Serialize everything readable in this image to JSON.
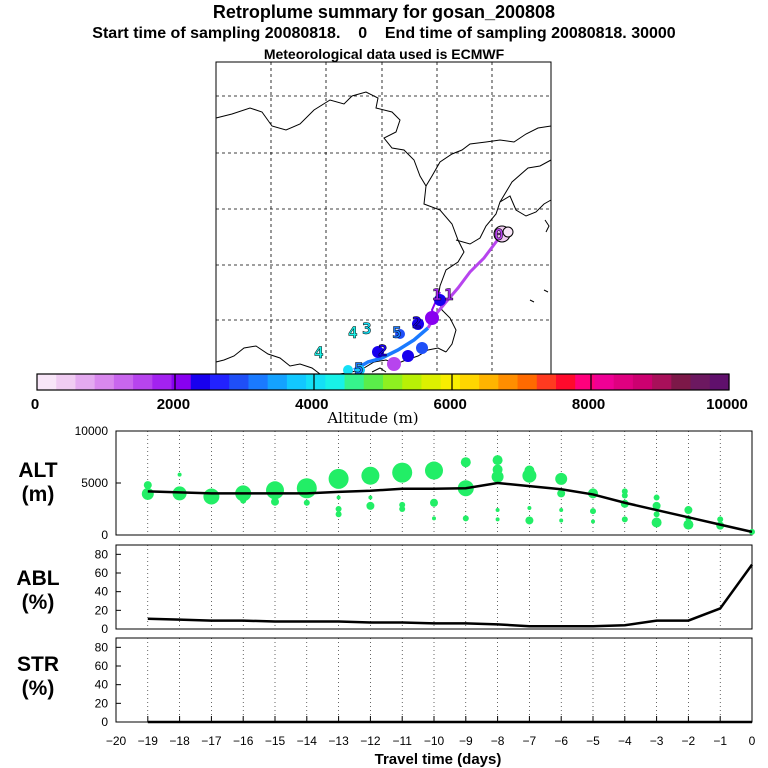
{
  "header": {
    "title": "Retroplume summary for gosan_200808",
    "start_label": "Start time of sampling 20080818.",
    "start_value": "0",
    "end_label": "End time of sampling 20080818.",
    "end_value": "30000",
    "met_line": "Meteorological data used is ECMWF"
  },
  "colorbar": {
    "label": "Altitude (m)",
    "ticks": [
      "0",
      "2000",
      "4000",
      "6000",
      "8000",
      "10000"
    ],
    "colors": [
      "#f8e6f8",
      "#f0ccf2",
      "#e4aaf0",
      "#d988ee",
      "#c966ee",
      "#b744ee",
      "#a322f0",
      "#8800f0",
      "#1800ee",
      "#2222ff",
      "#1f4ff7",
      "#1a7aff",
      "#14a2ff",
      "#12c8ff",
      "#14e0f6",
      "#18f2e8",
      "#36f48c",
      "#5aee4a",
      "#8ef020",
      "#b8f006",
      "#dcf000",
      "#f8ee00",
      "#ffd600",
      "#ffb400",
      "#ff8e00",
      "#ff6a00",
      "#ff3a20",
      "#ff0a2c",
      "#ff007c",
      "#ef0095",
      "#df0080",
      "#cc0070",
      "#a8105a",
      "#7c1848",
      "#6c1860",
      "#60106c"
    ]
  },
  "map": {
    "markers": [
      {
        "label": "0",
        "color": "#b744ee"
      },
      {
        "label": "1",
        "color": "#a322f0"
      },
      {
        "label": "2",
        "color": "#1800ee"
      },
      {
        "label": "3",
        "color": "#14e0f6"
      },
      {
        "label": "4",
        "color": "#18f2e8"
      },
      {
        "label": "5",
        "color": "#1a7aff"
      }
    ]
  },
  "chart_data": [
    {
      "type": "scatter",
      "panel": "ALT",
      "ylabel_line1": "ALT",
      "ylabel_line2": "(m)",
      "ylim": [
        0,
        10000
      ],
      "yticks": [
        "0",
        "5000",
        "10000"
      ],
      "mean_line": {
        "x": [
          -19,
          -18,
          -17,
          -16,
          -15,
          -14,
          -13,
          -12,
          -11,
          -10,
          -9,
          -8,
          -7,
          -6,
          -5,
          -4,
          -3,
          -2,
          -1,
          0
        ],
        "y": [
          4200,
          4100,
          4000,
          4000,
          4000,
          4000,
          4150,
          4250,
          4450,
          4450,
          4500,
          5000,
          4700,
          4400,
          3900,
          3100,
          2400,
          1700,
          1000,
          300
        ]
      },
      "clusters": [
        {
          "x": -19,
          "y": [
            3950,
            4800
          ],
          "size": [
            6,
            4
          ]
        },
        {
          "x": -18,
          "y": [
            4000,
            5800
          ],
          "size": [
            7,
            2
          ]
        },
        {
          "x": -17,
          "y": [
            3700
          ],
          "size": [
            8
          ]
        },
        {
          "x": -16,
          "y": [
            3300,
            4000
          ],
          "size": [
            3,
            8
          ]
        },
        {
          "x": -15,
          "y": [
            3200,
            4300
          ],
          "size": [
            4,
            9
          ]
        },
        {
          "x": -14,
          "y": [
            3100,
            4500
          ],
          "size": [
            3,
            10
          ]
        },
        {
          "x": -13,
          "y": [
            2000,
            2500,
            3600,
            5400
          ],
          "size": [
            3,
            3,
            2,
            10
          ]
        },
        {
          "x": -12,
          "y": [
            2800,
            3600,
            5700
          ],
          "size": [
            4,
            2,
            9
          ]
        },
        {
          "x": -11,
          "y": [
            2500,
            2900,
            6000
          ],
          "size": [
            3,
            3,
            10
          ]
        },
        {
          "x": -10,
          "y": [
            1600,
            3100,
            6200
          ],
          "size": [
            2,
            4,
            9
          ]
        },
        {
          "x": -9,
          "y": [
            1600,
            4500,
            7000
          ],
          "size": [
            3,
            8,
            5
          ]
        },
        {
          "x": -8,
          "y": [
            1500,
            2400,
            5600,
            6300,
            7200
          ],
          "size": [
            2,
            2,
            6,
            5,
            5
          ]
        },
        {
          "x": -7,
          "y": [
            1400,
            2600,
            5700,
            6200
          ],
          "size": [
            4,
            2,
            7,
            5
          ]
        },
        {
          "x": -6,
          "y": [
            1400,
            2400,
            4000,
            5400
          ],
          "size": [
            2,
            2,
            4,
            6
          ]
        },
        {
          "x": -5,
          "y": [
            1300,
            2300,
            4000
          ],
          "size": [
            2,
            3,
            5
          ]
        },
        {
          "x": -4,
          "y": [
            1500,
            3000,
            3800,
            4200
          ],
          "size": [
            3,
            4,
            3,
            3
          ]
        },
        {
          "x": -3,
          "y": [
            1200,
            2000,
            2800,
            3600
          ],
          "size": [
            5,
            3,
            4,
            3
          ]
        },
        {
          "x": -2,
          "y": [
            1000,
            1600,
            2400
          ],
          "size": [
            5,
            3,
            4
          ]
        },
        {
          "x": -1,
          "y": [
            900,
            1500
          ],
          "size": [
            4,
            3
          ]
        },
        {
          "x": 0,
          "y": [
            300
          ],
          "size": [
            3
          ]
        }
      ]
    },
    {
      "type": "line",
      "panel": "ABL",
      "ylabel_line1": "ABL",
      "ylabel_line2": "(%)",
      "ylim": [
        0,
        90
      ],
      "yticks": [
        "0",
        "20",
        "40",
        "60",
        "80"
      ],
      "x": [
        -19,
        -18,
        -17,
        -16,
        -15,
        -14,
        -13,
        -12,
        -11,
        -10,
        -9,
        -8,
        -7,
        -6,
        -5,
        -4,
        -3,
        -2,
        -1,
        0
      ],
      "y": [
        11,
        10,
        9,
        9,
        8,
        8,
        8,
        7,
        7,
        6,
        6,
        5,
        3,
        3,
        3,
        4,
        9,
        9,
        22,
        69
      ]
    },
    {
      "type": "line",
      "panel": "STR",
      "ylabel_line1": "STR",
      "ylabel_line2": "(%)",
      "ylim": [
        0,
        90
      ],
      "yticks": [
        "0",
        "20",
        "40",
        "60",
        "80"
      ],
      "x": [
        -19,
        -18,
        -17,
        -16,
        -15,
        -14,
        -13,
        -12,
        -11,
        -10,
        -9,
        -8,
        -7,
        -6,
        -5,
        -4,
        -3,
        -2,
        -1,
        0
      ],
      "y": [
        0,
        0,
        0,
        0,
        0,
        0,
        0,
        0,
        0,
        0,
        0,
        0,
        0,
        0,
        0,
        0,
        0,
        0,
        0,
        0
      ]
    }
  ],
  "xaxis": {
    "label": "Travel time (days)",
    "ticks": [
      "−20",
      "−19",
      "−18",
      "−17",
      "−16",
      "−15",
      "−14",
      "−13",
      "−12",
      "−11",
      "−10",
      "−9",
      "−8",
      "−7",
      "−6",
      "−5",
      "−4",
      "−3",
      "−2",
      "−1",
      "0"
    ]
  },
  "colors": {
    "dots": "#22ee66",
    "line": "#000000",
    "path": "#a34af0"
  }
}
